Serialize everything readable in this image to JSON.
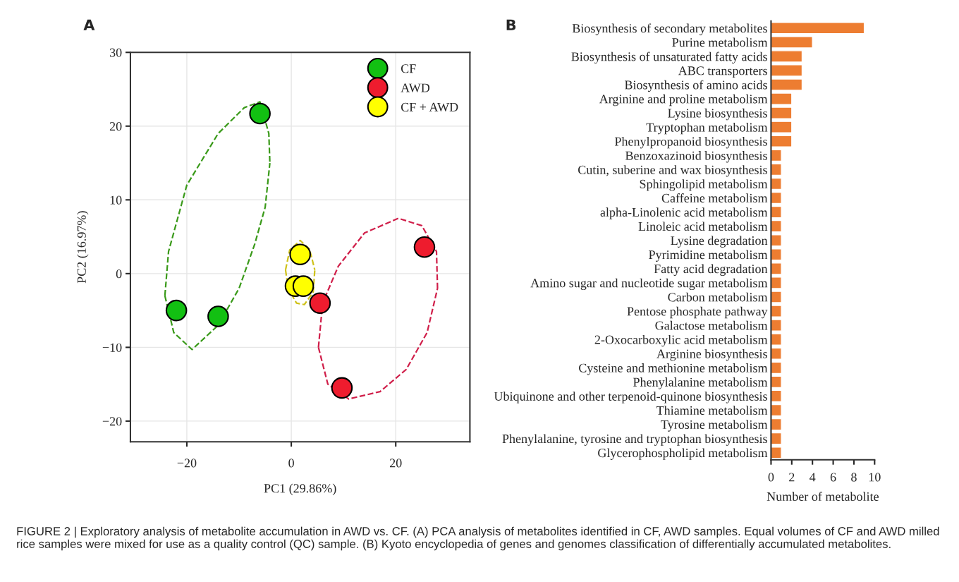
{
  "chart_data": [
    {
      "type": "scatter",
      "title": "A",
      "xlabel": "PC1 (29.86%)",
      "ylabel": "PC2 (16.97%)",
      "xlim": [
        -30.8,
        34.2
      ],
      "ylim": [
        -22.8,
        30
      ],
      "xticks": [
        -20,
        0,
        20
      ],
      "yticks": [
        -20,
        -10,
        0,
        10,
        20,
        30
      ],
      "grid": true,
      "legend": "top right",
      "marker": "circle",
      "series": [
        {
          "name": "CF",
          "color": "#12c012",
          "x": [
            -6,
            -22,
            -14
          ],
          "values": [
            21.7,
            -5,
            -5.8
          ]
        },
        {
          "name": "AWD",
          "color": "#ee1c2e",
          "x": [
            25.5,
            5.5,
            9.7
          ],
          "values": [
            3.6,
            -4,
            -15.5
          ]
        },
        {
          "name": "CF + AWD",
          "color": "#ffff00",
          "x": [
            1.7,
            0.8,
            2.3
          ],
          "values": [
            2.6,
            -1.7,
            -1.7
          ]
        },
        {
          "type": "line",
          "line_style": "dashed",
          "marker": "none",
          "color": "#3a9a1a",
          "x": [
            -24.2,
            -23.5,
            -20,
            -14,
            -9,
            -6,
            -4.3,
            -4.1,
            null,
            -24.2,
            -22.5,
            -19,
            -14,
            -10,
            -7,
            -5,
            -4.1
          ],
          "values": [
            -3,
            3,
            12,
            19,
            22.5,
            23.3,
            19,
            15,
            null,
            -3,
            -8,
            -10.3,
            -7,
            -2,
            4,
            9,
            15
          ]
        },
        {
          "type": "line",
          "line_style": "dashed",
          "marker": "none",
          "color": "#cfc21a",
          "x": [
            -1.1,
            -0.3,
            1.7,
            3.5,
            4.5,
            null,
            -1.1,
            -0.6,
            1.0,
            2.5,
            4.2,
            4.5
          ],
          "values": [
            0.5,
            3.2,
            4.5,
            3.3,
            0.5,
            null,
            0.5,
            -2,
            -4.0,
            -4.2,
            -2.5,
            0.5
          ]
        },
        {
          "type": "line",
          "line_style": "dashed",
          "marker": "none",
          "color": "#d01f4a",
          "x": [
            5.2,
            6,
            9,
            14,
            20.5,
            25,
            27.8,
            28,
            null,
            5.2,
            7,
            11,
            17,
            22,
            26,
            28
          ],
          "values": [
            -10,
            -4,
            1,
            5.5,
            7.5,
            6.5,
            3,
            -2,
            null,
            -10,
            -15,
            -17,
            -16,
            -13,
            -8,
            -2
          ]
        }
      ],
      "annotations": [
        "FIGURE 2 | Exploratory analysis of metabolite accumulation in AWD vs. CF. (A) PCA analysis of metabolites identified in CF, AWD samples. Equal volumes of CF and AWD milled rice samples were mixed for use as a quality control (QC) sample. (B) Kyoto encyclopedia of genes and genomes classification of differentially accumulated metabolites."
      ]
    },
    {
      "type": "bar",
      "orientation": "horizontal",
      "title": "B",
      "xlabel": "Number of metabolite",
      "xlim": [
        0,
        10
      ],
      "xticks": [
        0,
        2,
        4,
        6,
        8,
        10
      ],
      "grid": false,
      "categories": [
        "Biosynthesis of secondary metabolites",
        "Purine metabolism",
        "Biosynthesis of unsaturated fatty acids",
        "ABC transporters",
        "Biosynthesis of amino acids",
        "Arginine and proline metabolism",
        "Lysine biosynthesis",
        "Tryptophan metabolism",
        "Phenylpropanoid biosynthesis",
        "Benzoxazinoid biosynthesis",
        "Cutin, suberine and wax biosynthesis",
        "Sphingolipid metabolism",
        "Caffeine metabolism",
        "alpha-Linolenic acid metabolism",
        "Linoleic acid metabolism",
        "Lysine degradation",
        "Pyrimidine metabolism",
        "Fatty acid degradation",
        "Amino sugar and nucleotide sugar metabolism",
        "Carbon metabolism",
        "Pentose phosphate pathway",
        "Galactose metabolism",
        "2-Oxocarboxylic acid metabolism",
        "Arginine biosynthesis",
        "Cysteine and methionine metabolism",
        "Phenylalanine metabolism",
        "Ubiquinone and other terpenoid-quinone biosynthesis",
        "Thiamine metabolism",
        "Tyrosine metabolism",
        "Phenylalanine, tyrosine and tryptophan biosynthesis",
        "Glycerophospholipid metabolism"
      ],
      "values": [
        9,
        4,
        3,
        3,
        3,
        2,
        2,
        2,
        2,
        1,
        1,
        1,
        1,
        1,
        1,
        1,
        1,
        1,
        1,
        1,
        1,
        1,
        1,
        1,
        1,
        1,
        1,
        1,
        1,
        1,
        1
      ],
      "color": "#ed7d31"
    }
  ]
}
